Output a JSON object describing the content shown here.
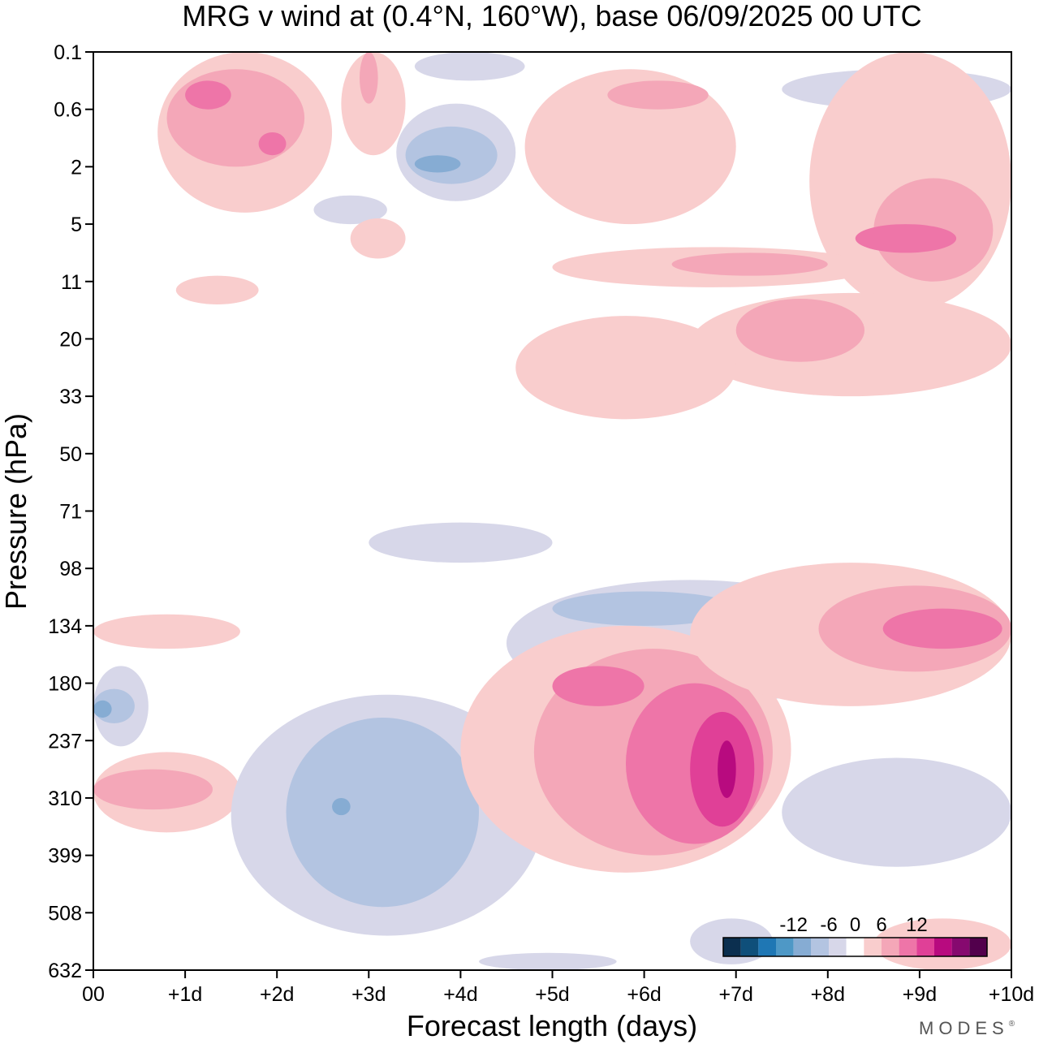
{
  "chart_data": {
    "type": "heatmap",
    "title": "MRG v wind at (0.4°N, 160°W),  base 06/09/2025  00 UTC",
    "xlabel": "Forecast length (days)",
    "ylabel": "Pressure (hPa)",
    "x_ticks": [
      "00",
      "+1d",
      "+2d",
      "+3d",
      "+4d",
      "+5d",
      "+6d",
      "+7d",
      "+8d",
      "+9d",
      "+10d"
    ],
    "xlim": [
      0,
      10
    ],
    "y_ticks": [
      "0.1",
      "0.6",
      "2",
      "5",
      "11",
      "20",
      "33",
      "50",
      "71",
      "98",
      "134",
      "180",
      "237",
      "310",
      "399",
      "508",
      "632"
    ],
    "colorbar": {
      "ticks": [
        "-12",
        "-6",
        "0",
        "6",
        "12"
      ],
      "levels": [
        -21,
        -18,
        -15,
        -12,
        -9,
        -6,
        -3,
        3,
        6,
        9,
        12,
        15,
        18,
        21
      ],
      "colors": [
        "#0b2f4f",
        "#0f4f7a",
        "#1f77b4",
        "#4e98c6",
        "#86acd3",
        "#b3c4e1",
        "#d7d7e9",
        "#ffffff",
        "#f9cdcd",
        "#f4a7b8",
        "#ee75a8",
        "#e04097",
        "#b80a7f",
        "#86096f",
        "#52004c"
      ]
    },
    "regions": [
      {
        "sign": "neg",
        "level": 1,
        "day": [
          0.0,
          0.6
        ],
        "lev": [
          10.7,
          12.1
        ]
      },
      {
        "sign": "neg",
        "level": 2,
        "day": [
          0.0,
          0.45
        ],
        "lev": [
          11.1,
          11.7
        ]
      },
      {
        "sign": "neg",
        "level": 3,
        "day": [
          0.0,
          0.2
        ],
        "lev": [
          11.3,
          11.6
        ]
      },
      {
        "sign": "pos",
        "level": 1,
        "day": [
          0.0,
          1.6
        ],
        "lev": [
          9.8,
          10.4
        ]
      },
      {
        "sign": "pos",
        "level": 1,
        "day": [
          0.0,
          1.6
        ],
        "lev": [
          12.2,
          13.6
        ]
      },
      {
        "sign": "pos",
        "level": 2,
        "day": [
          0.0,
          1.3
        ],
        "lev": [
          12.5,
          13.2
        ]
      },
      {
        "sign": "neg",
        "level": 1,
        "day": [
          1.5,
          4.9
        ],
        "lev": [
          11.2,
          15.4
        ]
      },
      {
        "sign": "neg",
        "level": 2,
        "day": [
          2.1,
          4.2
        ],
        "lev": [
          11.6,
          14.9
        ]
      },
      {
        "sign": "neg",
        "level": 3,
        "day": [
          2.6,
          2.8
        ],
        "lev": [
          13.0,
          13.3
        ]
      },
      {
        "sign": "neg",
        "level": 1,
        "day": [
          3.0,
          5.0
        ],
        "lev": [
          8.2,
          8.9
        ]
      },
      {
        "sign": "neg",
        "level": 1,
        "day": [
          4.5,
          8.5
        ],
        "lev": [
          9.2,
          11.4
        ]
      },
      {
        "sign": "neg",
        "level": 2,
        "day": [
          5.0,
          7.0
        ],
        "lev": [
          9.4,
          10.0
        ]
      },
      {
        "sign": "pos",
        "level": 1,
        "day": [
          4.0,
          7.6
        ],
        "lev": [
          10.0,
          14.3
        ]
      },
      {
        "sign": "pos",
        "level": 2,
        "day": [
          4.8,
          7.4
        ],
        "lev": [
          10.4,
          14.0
        ]
      },
      {
        "sign": "pos",
        "level": 3,
        "day": [
          5.0,
          6.0
        ],
        "lev": [
          10.7,
          11.4
        ]
      },
      {
        "sign": "pos",
        "level": 3,
        "day": [
          5.8,
          7.3
        ],
        "lev": [
          11.0,
          13.8
        ]
      },
      {
        "sign": "pos",
        "level": 4,
        "day": [
          6.5,
          7.2
        ],
        "lev": [
          11.5,
          13.5
        ]
      },
      {
        "sign": "pos",
        "level": 5,
        "day": [
          6.8,
          7.0
        ],
        "lev": [
          12.0,
          13.0
        ]
      },
      {
        "sign": "pos",
        "level": 1,
        "day": [
          6.5,
          10.0
        ],
        "lev": [
          8.9,
          11.4
        ]
      },
      {
        "sign": "pos",
        "level": 2,
        "day": [
          7.9,
          10.0
        ],
        "lev": [
          9.3,
          10.8
        ]
      },
      {
        "sign": "pos",
        "level": 3,
        "day": [
          8.6,
          9.9
        ],
        "lev": [
          9.7,
          10.4
        ]
      },
      {
        "sign": "neg",
        "level": 1,
        "day": [
          7.5,
          10.0
        ],
        "lev": [
          12.3,
          14.2
        ]
      },
      {
        "sign": "neg",
        "level": 1,
        "day": [
          6.5,
          7.4
        ],
        "lev": [
          15.1,
          15.9
        ]
      },
      {
        "sign": "pos",
        "level": 1,
        "day": [
          8.5,
          10.0
        ],
        "lev": [
          15.1,
          16.0
        ]
      },
      {
        "sign": "neg",
        "level": 1,
        "day": [
          4.2,
          5.7
        ],
        "lev": [
          15.7,
          16.0
        ]
      },
      {
        "sign": "neg",
        "level": 1,
        "day": [
          3.5,
          4.7
        ],
        "lev": [
          0.0,
          0.5
        ]
      },
      {
        "sign": "neg",
        "level": 1,
        "day": [
          3.3,
          4.6
        ],
        "lev": [
          0.9,
          2.6
        ]
      },
      {
        "sign": "neg",
        "level": 2,
        "day": [
          3.4,
          4.4
        ],
        "lev": [
          1.3,
          2.3
        ]
      },
      {
        "sign": "neg",
        "level": 3,
        "day": [
          3.5,
          4.0
        ],
        "lev": [
          1.8,
          2.1
        ]
      },
      {
        "sign": "neg",
        "level": 1,
        "day": [
          2.4,
          3.2
        ],
        "lev": [
          2.5,
          3.0
        ]
      },
      {
        "sign": "neg",
        "level": 1,
        "day": [
          7.5,
          10.0
        ],
        "lev": [
          0.3,
          1.0
        ]
      },
      {
        "sign": "neg",
        "level": 2,
        "day": [
          8.2,
          9.2
        ],
        "lev": [
          0.5,
          0.9
        ]
      },
      {
        "sign": "pos",
        "level": 1,
        "day": [
          0.7,
          2.6
        ],
        "lev": [
          0.0,
          2.8
        ]
      },
      {
        "sign": "pos",
        "level": 2,
        "day": [
          0.8,
          2.3
        ],
        "lev": [
          0.3,
          2.0
        ]
      },
      {
        "sign": "pos",
        "level": 3,
        "day": [
          1.0,
          1.5
        ],
        "lev": [
          0.5,
          1.0
        ]
      },
      {
        "sign": "pos",
        "level": 3,
        "day": [
          1.8,
          2.1
        ],
        "lev": [
          1.4,
          1.8
        ]
      },
      {
        "sign": "pos",
        "level": 1,
        "day": [
          2.7,
          3.4
        ],
        "lev": [
          0.0,
          1.8
        ]
      },
      {
        "sign": "pos",
        "level": 2,
        "day": [
          2.9,
          3.1
        ],
        "lev": [
          0.0,
          0.9
        ]
      },
      {
        "sign": "pos",
        "level": 1,
        "day": [
          4.7,
          7.0
        ],
        "lev": [
          0.3,
          3.0
        ]
      },
      {
        "sign": "pos",
        "level": 2,
        "day": [
          5.6,
          6.7
        ],
        "lev": [
          0.5,
          1.0
        ]
      },
      {
        "sign": "pos",
        "level": 1,
        "day": [
          7.8,
          10.0
        ],
        "lev": [
          0.0,
          4.5
        ]
      },
      {
        "sign": "pos",
        "level": 2,
        "day": [
          8.5,
          9.8
        ],
        "lev": [
          2.2,
          4.0
        ]
      },
      {
        "sign": "pos",
        "level": 3,
        "day": [
          8.3,
          9.4
        ],
        "lev": [
          3.0,
          3.5
        ]
      },
      {
        "sign": "pos",
        "level": 1,
        "day": [
          5.0,
          8.5
        ],
        "lev": [
          3.4,
          4.1
        ]
      },
      {
        "sign": "pos",
        "level": 2,
        "day": [
          6.3,
          8.0
        ],
        "lev": [
          3.5,
          3.9
        ]
      },
      {
        "sign": "pos",
        "level": 1,
        "day": [
          6.5,
          10.0
        ],
        "lev": [
          4.2,
          6.0
        ]
      },
      {
        "sign": "pos",
        "level": 2,
        "day": [
          7.0,
          8.4
        ],
        "lev": [
          4.3,
          5.4
        ]
      },
      {
        "sign": "pos",
        "level": 1,
        "day": [
          4.6,
          7.0
        ],
        "lev": [
          4.6,
          6.4
        ]
      },
      {
        "sign": "pos",
        "level": 1,
        "day": [
          2.8,
          3.4
        ],
        "lev": [
          2.9,
          3.6
        ]
      },
      {
        "sign": "pos",
        "level": 1,
        "day": [
          0.9,
          1.8
        ],
        "lev": [
          3.9,
          4.4
        ]
      }
    ]
  },
  "brand": "MODES",
  "brand_mark": "®"
}
